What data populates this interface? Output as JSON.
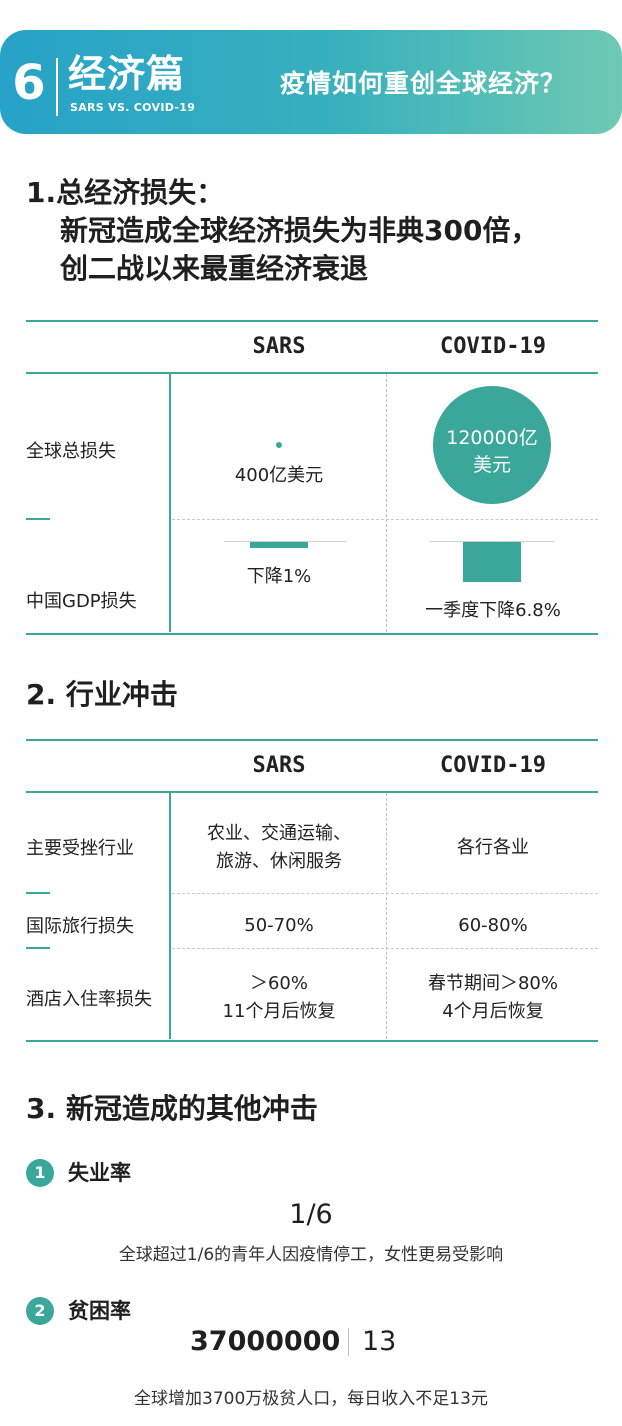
{
  "header": {
    "number": "6",
    "title": "经济篇",
    "subtitle": "SARS VS. COVID-19",
    "tagline": "疫情如何重创全球经济？"
  },
  "section1": {
    "heading_line1": "1.总经济损失：",
    "heading_line2": "新冠造成全球经济损失为非典300倍，",
    "heading_line3": "创二战以来最重经济衰退",
    "col_sars": "SARS",
    "col_covid": "COVID-19",
    "row_total_label": "全球总损失",
    "sars_total": "400亿美元",
    "covid_total_line1": "120000亿",
    "covid_total_line2": "美元",
    "row_gdp_label": "中国GDP损失",
    "sars_gdp": "下降1%",
    "covid_gdp": "一季度下降6.8%"
  },
  "section2": {
    "heading": "2. 行业冲击",
    "col_sars": "SARS",
    "col_covid": "COVID-19",
    "rows": [
      {
        "label": "主要受挫行业",
        "sars_line1": "农业、交通运输、",
        "sars_line2": "旅游、休闲服务",
        "covid": "各行各业"
      },
      {
        "label": "国际旅行损失",
        "sars": "50-70%",
        "covid": "60-80%"
      },
      {
        "label": "酒店入住率损失",
        "sars_line1": "＞60%",
        "sars_line2": "11个月后恢复",
        "covid_line1": "春节期间＞80%",
        "covid_line2": "4个月后恢复"
      }
    ]
  },
  "section3": {
    "heading": "3. 新冠造成的其他冲击",
    "items": [
      {
        "num": "1",
        "title": "失业率",
        "figure": "1/6",
        "desc": "全球超过1/6的青年人因疫情停工，女性更易受影响"
      },
      {
        "num": "2",
        "title": "贫困率",
        "figure_a": "37000000",
        "figure_b": "13",
        "desc": "全球增加3700万极贫人口，每日收入不足13元"
      }
    ]
  },
  "colors": {
    "accent": "#3ba79a",
    "banner_start": "#27a2c8",
    "banner_end": "#6ec9b3"
  },
  "chart_data": [
    {
      "type": "bar",
      "categories": [
        "SARS",
        "COVID-19"
      ],
      "values": [
        400,
        120000
      ],
      "ylabel": "",
      "title": ""
    },
    {
      "type": "bar",
      "categories": [
        "SARS",
        "COVID-19"
      ],
      "values": [
        1,
        6.8
      ],
      "ylabel": "",
      "title": ""
    }
  ]
}
